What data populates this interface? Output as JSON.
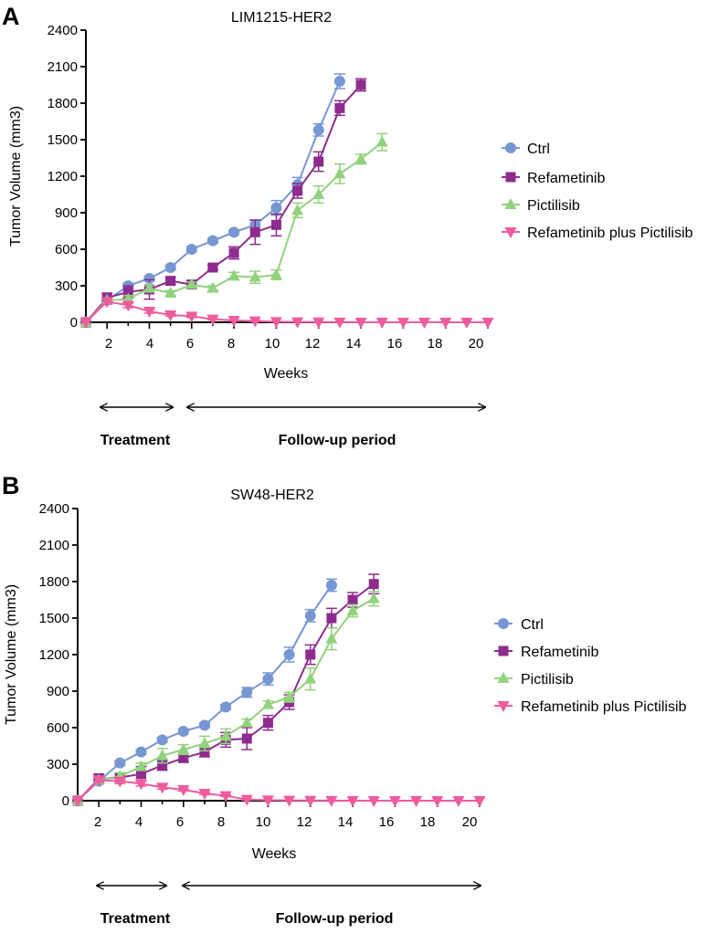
{
  "chart_data": [
    {
      "panel": "A",
      "type": "line",
      "title": "LIM1215-HER2",
      "xlabel": "Weeks",
      "ylabel": "Tumor Volume (mm3)",
      "xlim": [
        1,
        20
      ],
      "ylim": [
        0,
        2400
      ],
      "xticks": [
        2,
        4,
        6,
        8,
        10,
        12,
        14,
        16,
        18,
        20
      ],
      "yticks": [
        0,
        300,
        600,
        900,
        1200,
        1500,
        1800,
        2100,
        2400
      ],
      "legend_position": "right",
      "series": [
        {
          "name": "Ctrl",
          "color": "#7797d3",
          "marker": "circle",
          "x": [
            1,
            2,
            3,
            4,
            5,
            6,
            7,
            8,
            9,
            10,
            11,
            12,
            13
          ],
          "y": [
            0,
            180,
            300,
            360,
            450,
            600,
            670,
            740,
            800,
            940,
            1130,
            1580,
            1980
          ],
          "err": [
            0,
            20,
            20,
            20,
            20,
            20,
            20,
            20,
            40,
            60,
            60,
            50,
            60
          ]
        },
        {
          "name": "Refametinib",
          "color": "#8e2b8e",
          "marker": "square",
          "x": [
            1,
            2,
            3,
            4,
            5,
            6,
            7,
            8,
            9,
            10,
            11,
            12,
            13,
            14
          ],
          "y": [
            0,
            200,
            250,
            270,
            340,
            310,
            450,
            570,
            740,
            800,
            1080,
            1320,
            1760,
            1950
          ],
          "err": [
            0,
            40,
            50,
            80,
            30,
            30,
            20,
            50,
            100,
            90,
            60,
            80,
            60,
            50
          ]
        },
        {
          "name": "Pictilisib",
          "color": "#92d27d",
          "marker": "triangle-up",
          "x": [
            1,
            2,
            3,
            4,
            5,
            6,
            7,
            8,
            9,
            10,
            11,
            12,
            13,
            14,
            15
          ],
          "y": [
            0,
            180,
            190,
            280,
            240,
            310,
            280,
            380,
            370,
            390,
            920,
            1050,
            1220,
            1340,
            1480
          ],
          "err": [
            0,
            20,
            30,
            20,
            20,
            20,
            20,
            30,
            50,
            40,
            60,
            70,
            80,
            40,
            70
          ]
        },
        {
          "name": "Refametinib plus Pictilisib",
          "color": "#ee5c9e",
          "marker": "triangle-down",
          "x": [
            1,
            2,
            3,
            4,
            5,
            6,
            7,
            8,
            9,
            10,
            11,
            12,
            13,
            14,
            15,
            16,
            17,
            18,
            19,
            20
          ],
          "y": [
            0,
            170,
            140,
            90,
            60,
            50,
            25,
            15,
            10,
            5,
            3,
            2,
            1,
            0,
            0,
            0,
            0,
            0,
            0,
            0
          ],
          "err": [
            0,
            20,
            20,
            15,
            10,
            10,
            5,
            5,
            5,
            0,
            0,
            0,
            0,
            0,
            0,
            0,
            0,
            0,
            0,
            0
          ]
        }
      ],
      "periods": [
        {
          "label": "Treatment",
          "from": 2,
          "to": 5
        },
        {
          "label": "Follow-up period",
          "from": 6,
          "to": 20
        }
      ]
    },
    {
      "panel": "B",
      "type": "line",
      "title": "SW48-HER2",
      "xlabel": "Weeks",
      "ylabel": "Tumor Volume (mm3)",
      "xlim": [
        1,
        20
      ],
      "ylim": [
        0,
        2400
      ],
      "xticks": [
        2,
        4,
        6,
        8,
        10,
        12,
        14,
        16,
        18,
        20
      ],
      "yticks": [
        0,
        300,
        600,
        900,
        1200,
        1500,
        1800,
        2100,
        2400
      ],
      "legend_position": "right",
      "series": [
        {
          "name": "Ctrl",
          "color": "#7797d3",
          "marker": "circle",
          "x": [
            1,
            2,
            3,
            4,
            5,
            6,
            7,
            8,
            9,
            10,
            11,
            12,
            13
          ],
          "y": [
            0,
            160,
            310,
            400,
            500,
            570,
            620,
            770,
            890,
            1000,
            1200,
            1520,
            1770
          ],
          "err": [
            0,
            20,
            20,
            20,
            20,
            20,
            20,
            20,
            40,
            50,
            60,
            50,
            50
          ]
        },
        {
          "name": "Refametinib",
          "color": "#8e2b8e",
          "marker": "square",
          "x": [
            1,
            2,
            3,
            4,
            5,
            6,
            7,
            8,
            9,
            10,
            11,
            12,
            13,
            14,
            15
          ],
          "y": [
            0,
            180,
            190,
            220,
            290,
            350,
            400,
            500,
            510,
            640,
            810,
            1200,
            1500,
            1650,
            1780
          ],
          "err": [
            0,
            40,
            30,
            60,
            40,
            30,
            40,
            60,
            90,
            60,
            60,
            80,
            80,
            60,
            80
          ]
        },
        {
          "name": "Pictilisib",
          "color": "#92d27d",
          "marker": "triangle-up",
          "x": [
            1,
            2,
            3,
            4,
            5,
            6,
            7,
            8,
            9,
            10,
            11,
            12,
            13,
            14,
            15
          ],
          "y": [
            0,
            170,
            200,
            280,
            370,
            420,
            470,
            530,
            640,
            790,
            850,
            1000,
            1330,
            1560,
            1660
          ],
          "err": [
            0,
            20,
            30,
            30,
            60,
            40,
            60,
            60,
            30,
            30,
            40,
            90,
            90,
            50,
            60
          ]
        },
        {
          "name": "Refametinib plus Pictilisib",
          "color": "#ee5c9e",
          "marker": "triangle-down",
          "x": [
            1,
            2,
            3,
            4,
            5,
            6,
            7,
            8,
            9,
            10,
            11,
            12,
            13,
            14,
            15,
            16,
            17,
            18,
            19,
            20
          ],
          "y": [
            0,
            170,
            160,
            140,
            110,
            90,
            60,
            40,
            10,
            5,
            3,
            2,
            1,
            0,
            0,
            0,
            0,
            0,
            0,
            0
          ],
          "err": [
            0,
            20,
            20,
            20,
            15,
            10,
            10,
            5,
            5,
            0,
            0,
            0,
            0,
            0,
            0,
            0,
            0,
            0,
            0,
            0
          ]
        }
      ],
      "periods": [
        {
          "label": "Treatment",
          "from": 2,
          "to": 5
        },
        {
          "label": "Follow-up period",
          "from": 6,
          "to": 20
        }
      ]
    }
  ]
}
